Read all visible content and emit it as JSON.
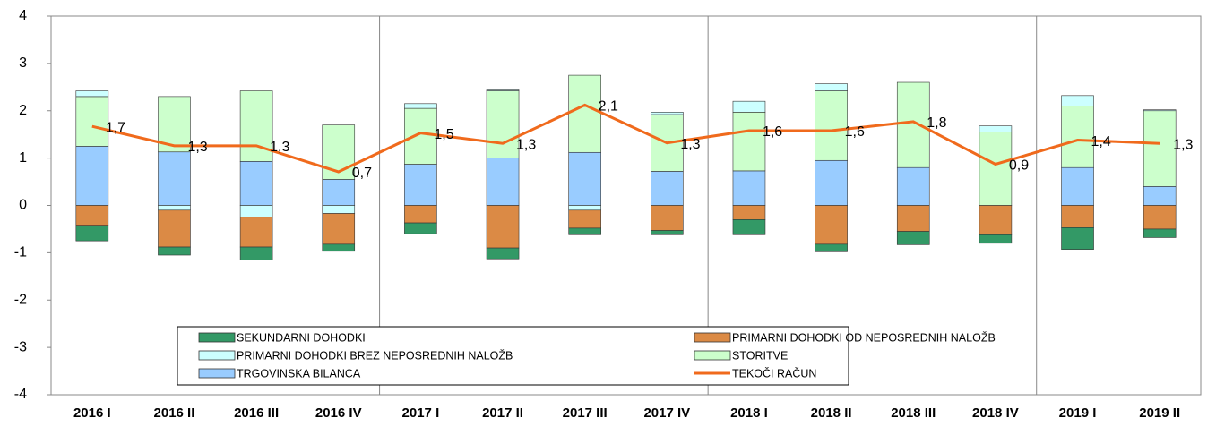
{
  "chart_data": {
    "type": "bar",
    "categories": [
      "2016 I",
      "2016 II",
      "2016 III",
      "2016 IV",
      "2017 I",
      "2017 II",
      "2017 III",
      "2017 IV",
      "2018 I",
      "2018 II",
      "2018 III",
      "2018 IV",
      "2019 I",
      "2019 II"
    ],
    "ylim": [
      -4,
      4
    ],
    "yticks": [
      -4,
      -3,
      -2,
      -1,
      0,
      1,
      2,
      3,
      4
    ],
    "series": [
      {
        "name": "SEKUNDARNI DOHODKI",
        "color": "#339966",
        "values": [
          -0.33,
          -0.17,
          -0.27,
          -0.15,
          -0.23,
          -0.23,
          -0.14,
          -0.09,
          -0.32,
          -0.16,
          -0.28,
          -0.18,
          -0.46,
          -0.18
        ]
      },
      {
        "name": "PRIMARNI DOHODKI OD NEPOSREDNIH NALOŽB",
        "color": "#db8a45",
        "values": [
          -0.42,
          -0.78,
          -0.63,
          -0.65,
          -0.37,
          -0.9,
          -0.38,
          -0.53,
          -0.3,
          -0.82,
          -0.55,
          -0.62,
          -0.47,
          -0.5
        ]
      },
      {
        "name": "PRIMARNI DOHODKI BREZ NEPOSREDNIH NALOŽB",
        "color": "#ccffff",
        "values": [
          0.12,
          -0.1,
          -0.25,
          -0.17,
          0.1,
          0.02,
          -0.1,
          0.05,
          0.23,
          0.15,
          0,
          0.13,
          0.22,
          0.02
        ]
      },
      {
        "name": "STORITVE",
        "color": "#ccffcc",
        "values": [
          1.05,
          1.17,
          1.49,
          1.15,
          1.18,
          1.42,
          1.63,
          1.2,
          1.24,
          1.47,
          1.8,
          1.55,
          1.3,
          1.6
        ]
      },
      {
        "name": "TRGOVINSKA BILANCA",
        "color": "#99ccff",
        "values": [
          1.25,
          1.13,
          0.93,
          0.55,
          0.87,
          1.0,
          1.12,
          0.72,
          0.73,
          0.95,
          0.8,
          0,
          0.8,
          0.4
        ]
      },
      {
        "name": "TEKOČI RAČUN",
        "color": "#f06a1c",
        "type": "line",
        "values": [
          1.67,
          1.26,
          1.26,
          0.71,
          1.53,
          1.31,
          2.12,
          1.32,
          1.58,
          1.58,
          1.77,
          0.87,
          1.38,
          1.31
        ],
        "value_labels": [
          "1,7",
          "1,3",
          "1,3",
          "0,7",
          "1,5",
          "1,3",
          "2,1",
          "1,3",
          "1,6",
          "1,6",
          "1,8",
          "0,9",
          "1,4",
          "1,3"
        ]
      }
    ]
  }
}
